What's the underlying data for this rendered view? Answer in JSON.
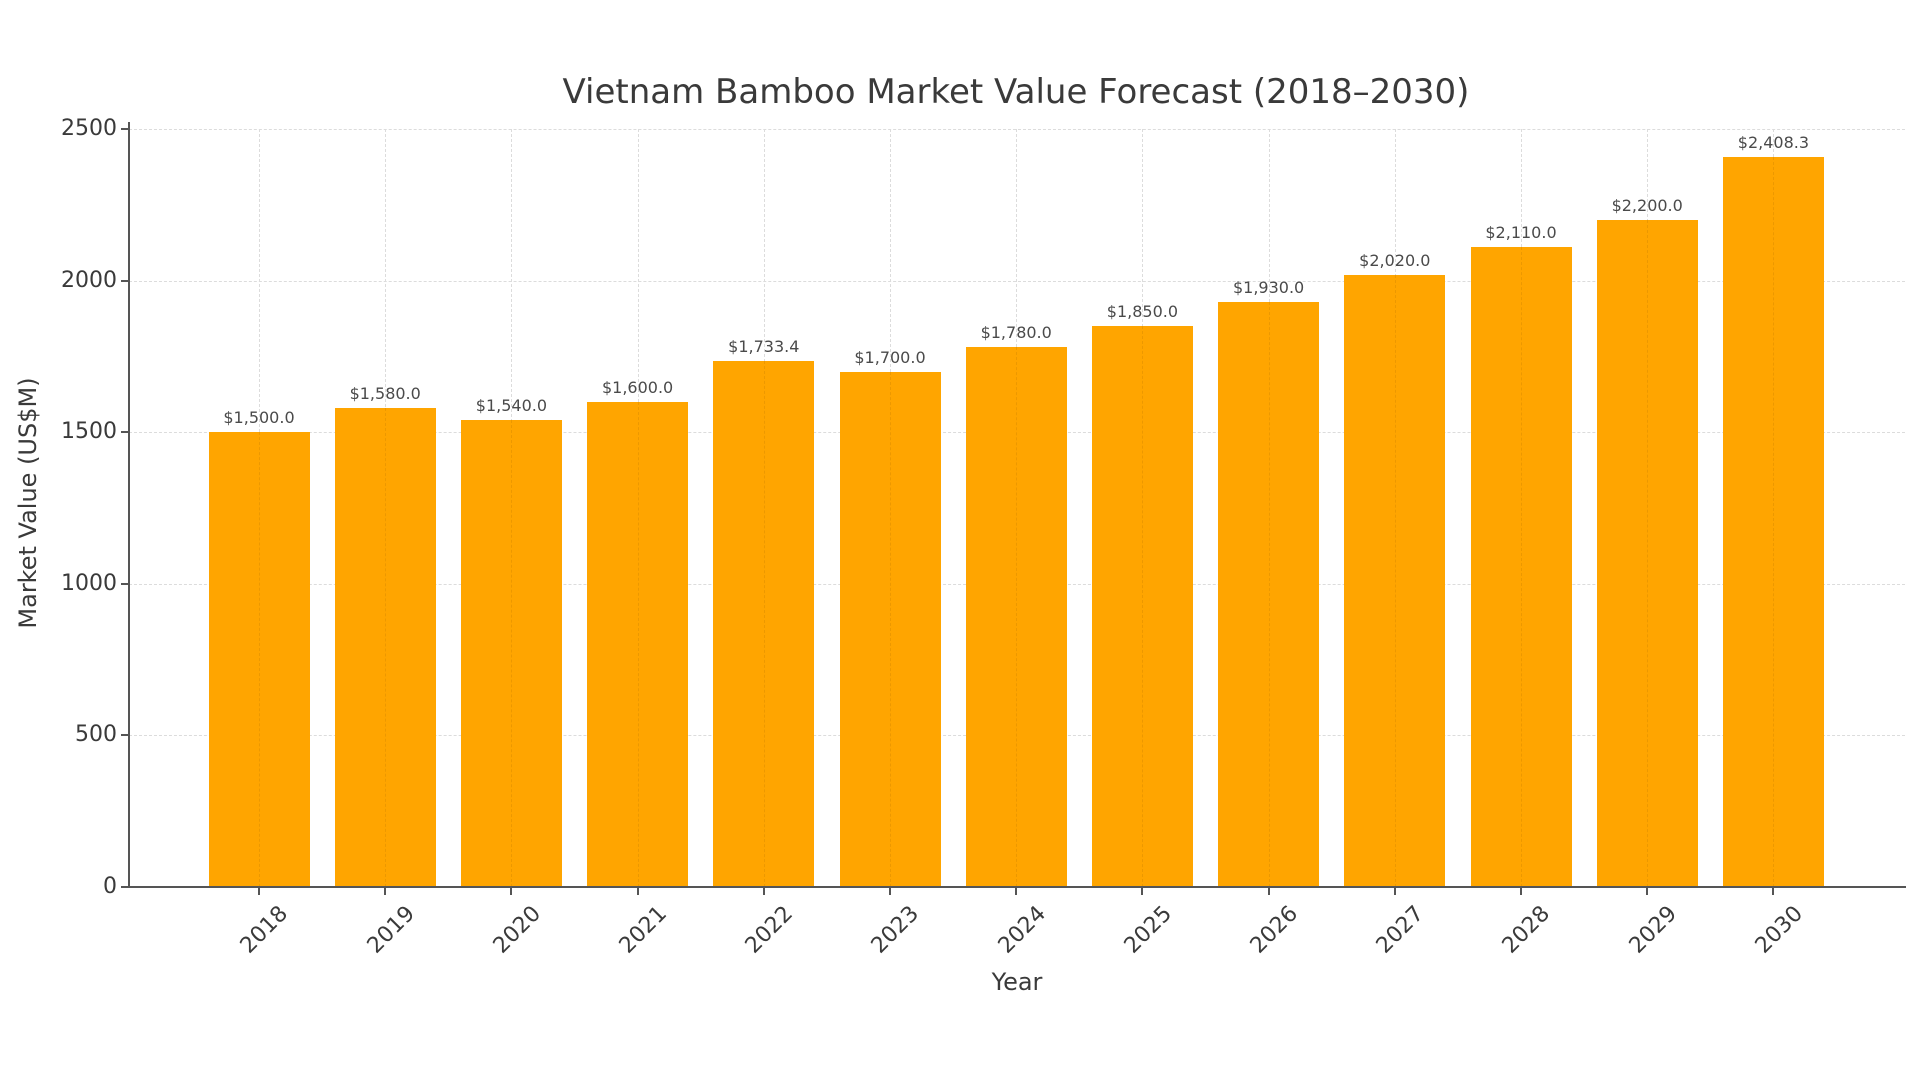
{
  "chart_data": {
    "type": "bar",
    "title": "Vietnam Bamboo Market Value Forecast (2018–2030)",
    "xlabel": "Year",
    "ylabel": "Market Value (US$M)",
    "categories": [
      "2018",
      "2019",
      "2020",
      "2021",
      "2022",
      "2023",
      "2024",
      "2025",
      "2026",
      "2027",
      "2028",
      "2029",
      "2030"
    ],
    "values": [
      1500.0,
      1580.0,
      1540.0,
      1600.0,
      1733.4,
      1700.0,
      1780.0,
      1850.0,
      1930.0,
      2020.0,
      2110.0,
      2200.0,
      2408.3
    ],
    "data_labels": [
      "$1,500.0",
      "$1,580.0",
      "$1,540.0",
      "$1,600.0",
      "$1,733.4",
      "$1,700.0",
      "$1,780.0",
      "$1,850.0",
      "$1,930.0",
      "$2,020.0",
      "$2,110.0",
      "$2,200.0",
      "$2,408.3"
    ],
    "ylim": [
      0,
      2500
    ],
    "yticks": [
      0,
      500,
      1000,
      1500,
      2000,
      2500
    ],
    "ytick_labels": [
      "0",
      "500",
      "1000",
      "1500",
      "2000",
      "2500"
    ],
    "xtick_rotation": 45,
    "grid": true,
    "grid_style": "dashed",
    "legend": null,
    "colors": {
      "bar": "#FFA500",
      "grid": "#dcdcdc",
      "axis": "#555555",
      "text": "#3a3a3a"
    }
  }
}
